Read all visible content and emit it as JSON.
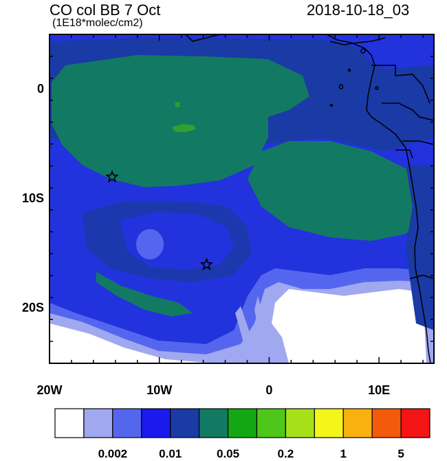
{
  "header": {
    "title": "CO col BB 7 Oct",
    "subtitle": "(1E18*molec/cm2)",
    "datetime": "2018-10-18_03"
  },
  "map": {
    "lon_range": [
      -20,
      15
    ],
    "lat_range": [
      -25,
      5
    ],
    "y_ticks": [
      {
        "lat": 0,
        "label": "0"
      },
      {
        "lat": -10,
        "label": "10S"
      },
      {
        "lat": -20,
        "label": "20S"
      }
    ],
    "x_ticks": [
      {
        "lon": -20,
        "label": "20W"
      },
      {
        "lon": -10,
        "label": "10W"
      },
      {
        "lon": 0,
        "label": "0"
      },
      {
        "lon": 10,
        "label": "10E"
      }
    ],
    "stars": [
      {
        "lon": -14.3,
        "lat": -8.0
      },
      {
        "lon": -5.7,
        "lat": -16.0
      }
    ],
    "fill_colors": {
      "background": "#2233dd",
      "dark_blue": "#1a3aa6",
      "teal": "#127a62",
      "mid_blue": "#5566ee",
      "light_blue": "#a0a8f0",
      "white": "#ffffff",
      "green": "#2fa02f"
    }
  },
  "colorbar": {
    "colors": [
      "#ffffff",
      "#a0a8f0",
      "#5566ee",
      "#1a1aee",
      "#1a3aa6",
      "#127a62",
      "#13a813",
      "#4fc61a",
      "#a6e019",
      "#f5f51a",
      "#f9b10f",
      "#f45a0b",
      "#f51414"
    ],
    "labels": [
      {
        "index": 2,
        "text": "0.002"
      },
      {
        "index": 4,
        "text": "0.01"
      },
      {
        "index": 6,
        "text": "0.05"
      },
      {
        "index": 8,
        "text": "0.2"
      },
      {
        "index": 10,
        "text": "1"
      },
      {
        "index": 12,
        "text": "5"
      }
    ]
  }
}
